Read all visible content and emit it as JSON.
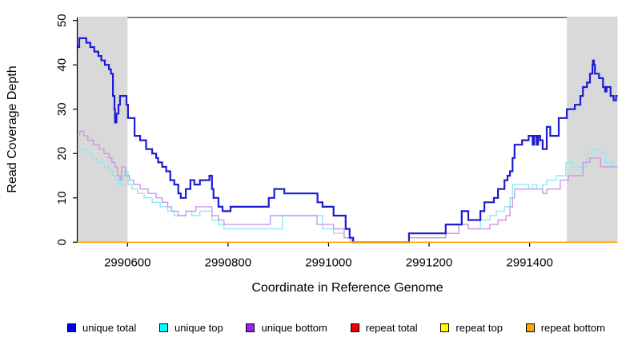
{
  "chart_data": {
    "type": "line",
    "subtype": "step",
    "title": "",
    "xlabel": "Coordinate in Reference Genome",
    "ylabel": "Read Coverage Depth",
    "xlim": [
      2990500,
      2991575
    ],
    "ylim": [
      0,
      50
    ],
    "x_ticks": [
      2990600,
      2990800,
      2991000,
      2991200,
      2991400
    ],
    "y_ticks": [
      0,
      10,
      20,
      30,
      40,
      50
    ],
    "grid": false,
    "legend_position": "bottom",
    "plot_background": "#ffffff",
    "highlight_color": "#d9d9d9",
    "highlight_regions": [
      {
        "x0": 2990500,
        "x1": 2990600
      },
      {
        "x0": 2991474,
        "x1": 2991575
      }
    ],
    "draw_order": [
      3,
      4,
      1,
      2,
      0,
      5
    ],
    "series": [
      {
        "name": "unique total",
        "swatch_color": "#0000EE",
        "line_color": "#1c1cd2",
        "line_width": 2.2,
        "points": [
          [
            2990500,
            44
          ],
          [
            2990504,
            46
          ],
          [
            2990518,
            45
          ],
          [
            2990526,
            44
          ],
          [
            2990534,
            43
          ],
          [
            2990542,
            42
          ],
          [
            2990548,
            41
          ],
          [
            2990555,
            40
          ],
          [
            2990563,
            39
          ],
          [
            2990567,
            38
          ],
          [
            2990571,
            33
          ],
          [
            2990574,
            30
          ],
          [
            2990575,
            27
          ],
          [
            2990578,
            29
          ],
          [
            2990582,
            31
          ],
          [
            2990585,
            33
          ],
          [
            2990598,
            31
          ],
          [
            2990601,
            28
          ],
          [
            2990614,
            24
          ],
          [
            2990625,
            23
          ],
          [
            2990637,
            21
          ],
          [
            2990649,
            20
          ],
          [
            2990657,
            19
          ],
          [
            2990661,
            18
          ],
          [
            2990669,
            17
          ],
          [
            2990677,
            16
          ],
          [
            2990685,
            14
          ],
          [
            2990693,
            13
          ],
          [
            2990701,
            11
          ],
          [
            2990706,
            10
          ],
          [
            2990716,
            12
          ],
          [
            2990725,
            14
          ],
          [
            2990733,
            13
          ],
          [
            2990744,
            14
          ],
          [
            2990763,
            15
          ],
          [
            2990768,
            12
          ],
          [
            2990771,
            10
          ],
          [
            2990781,
            8
          ],
          [
            2990789,
            7
          ],
          [
            2990805,
            8
          ],
          [
            2990881,
            10
          ],
          [
            2990892,
            12
          ],
          [
            2990912,
            11
          ],
          [
            2990978,
            9
          ],
          [
            2990988,
            8
          ],
          [
            2991010,
            6
          ],
          [
            2991034,
            3
          ],
          [
            2991042,
            1
          ],
          [
            2991049,
            0
          ],
          [
            2991160,
            2
          ],
          [
            2991233,
            4
          ],
          [
            2991265,
            7
          ],
          [
            2991278,
            5
          ],
          [
            2991302,
            7
          ],
          [
            2991310,
            9
          ],
          [
            2991329,
            10
          ],
          [
            2991337,
            12
          ],
          [
            2991350,
            14
          ],
          [
            2991356,
            15
          ],
          [
            2991361,
            16
          ],
          [
            2991366,
            19
          ],
          [
            2991370,
            22
          ],
          [
            2991385,
            23
          ],
          [
            2991398,
            24
          ],
          [
            2991406,
            22
          ],
          [
            2991409,
            24
          ],
          [
            2991414,
            22
          ],
          [
            2991417,
            24
          ],
          [
            2991421,
            23
          ],
          [
            2991426,
            21
          ],
          [
            2991434,
            26
          ],
          [
            2991441,
            24
          ],
          [
            2991458,
            28
          ],
          [
            2991474,
            30
          ],
          [
            2991490,
            31
          ],
          [
            2991501,
            33
          ],
          [
            2991506,
            35
          ],
          [
            2991514,
            36
          ],
          [
            2991520,
            38
          ],
          [
            2991525,
            40
          ],
          [
            2991526,
            41
          ],
          [
            2991528,
            40
          ],
          [
            2991530,
            38
          ],
          [
            2991538,
            37
          ],
          [
            2991546,
            35
          ],
          [
            2991550,
            34
          ],
          [
            2991553,
            35
          ],
          [
            2991561,
            33
          ],
          [
            2991567,
            32
          ],
          [
            2991572,
            33
          ]
        ]
      },
      {
        "name": "unique top",
        "swatch_color": "#00FFFF",
        "line_color": "#8ceaee",
        "line_width": 1.4,
        "points": [
          [
            2990500,
            21
          ],
          [
            2990518,
            20
          ],
          [
            2990529,
            19
          ],
          [
            2990540,
            18
          ],
          [
            2990553,
            17
          ],
          [
            2990563,
            16
          ],
          [
            2990571,
            15
          ],
          [
            2990577,
            14
          ],
          [
            2990582,
            13
          ],
          [
            2990590,
            15
          ],
          [
            2990594,
            16
          ],
          [
            2990601,
            13
          ],
          [
            2990609,
            12
          ],
          [
            2990620,
            11
          ],
          [
            2990633,
            10
          ],
          [
            2990649,
            9
          ],
          [
            2990665,
            8
          ],
          [
            2990680,
            7
          ],
          [
            2990693,
            6
          ],
          [
            2990716,
            7
          ],
          [
            2990728,
            6
          ],
          [
            2990744,
            7
          ],
          [
            2990768,
            5
          ],
          [
            2990781,
            4
          ],
          [
            2990792,
            3
          ],
          [
            2990908,
            6
          ],
          [
            2990988,
            3
          ],
          [
            2991010,
            2
          ],
          [
            2991031,
            1
          ],
          [
            2991047,
            0
          ],
          [
            2991160,
            1
          ],
          [
            2991233,
            2
          ],
          [
            2991259,
            4
          ],
          [
            2991278,
            3
          ],
          [
            2991302,
            5
          ],
          [
            2991321,
            6
          ],
          [
            2991334,
            7
          ],
          [
            2991350,
            8
          ],
          [
            2991361,
            10
          ],
          [
            2991366,
            13
          ],
          [
            2991398,
            12
          ],
          [
            2991406,
            13
          ],
          [
            2991414,
            12
          ],
          [
            2991426,
            13
          ],
          [
            2991434,
            14
          ],
          [
            2991453,
            15
          ],
          [
            2991472,
            18
          ],
          [
            2991485,
            17
          ],
          [
            2991514,
            20
          ],
          [
            2991525,
            21
          ],
          [
            2991541,
            20
          ],
          [
            2991552,
            18
          ],
          [
            2991564,
            17
          ]
        ]
      },
      {
        "name": "unique bottom",
        "swatch_color": "#A020F0",
        "line_color": "#cb97ea",
        "line_width": 1.4,
        "points": [
          [
            2990500,
            24
          ],
          [
            2990505,
            25
          ],
          [
            2990513,
            24
          ],
          [
            2990521,
            23
          ],
          [
            2990532,
            22
          ],
          [
            2990544,
            21
          ],
          [
            2990553,
            20
          ],
          [
            2990563,
            19
          ],
          [
            2990569,
            18
          ],
          [
            2990575,
            17
          ],
          [
            2990580,
            15
          ],
          [
            2990585,
            14
          ],
          [
            2990588,
            17
          ],
          [
            2990596,
            15
          ],
          [
            2990604,
            14
          ],
          [
            2990612,
            13
          ],
          [
            2990625,
            12
          ],
          [
            2990641,
            11
          ],
          [
            2990657,
            10
          ],
          [
            2990669,
            9
          ],
          [
            2990680,
            8
          ],
          [
            2990688,
            7
          ],
          [
            2990701,
            6
          ],
          [
            2990716,
            7
          ],
          [
            2990736,
            8
          ],
          [
            2990768,
            6
          ],
          [
            2990781,
            5
          ],
          [
            2990792,
            4
          ],
          [
            2990884,
            6
          ],
          [
            2990977,
            4
          ],
          [
            2991010,
            3
          ],
          [
            2991031,
            1
          ],
          [
            2991044,
            0
          ],
          [
            2991160,
            1
          ],
          [
            2991233,
            2
          ],
          [
            2991259,
            4
          ],
          [
            2991278,
            3
          ],
          [
            2991302,
            3
          ],
          [
            2991321,
            4
          ],
          [
            2991337,
            5
          ],
          [
            2991353,
            6
          ],
          [
            2991361,
            8
          ],
          [
            2991366,
            10
          ],
          [
            2991370,
            12
          ],
          [
            2991426,
            11
          ],
          [
            2991434,
            12
          ],
          [
            2991461,
            14
          ],
          [
            2991477,
            15
          ],
          [
            2991506,
            18
          ],
          [
            2991520,
            19
          ],
          [
            2991541,
            17
          ],
          [
            2991564,
            17
          ]
        ]
      },
      {
        "name": "repeat total",
        "swatch_color": "#EE0000",
        "line_color": "#EE0000",
        "line_width": 1.4,
        "points": [
          [
            2990500,
            0
          ],
          [
            2991575,
            0
          ]
        ]
      },
      {
        "name": "repeat top",
        "swatch_color": "#FFFF00",
        "line_color": "#FFFF00",
        "line_width": 1.4,
        "points": [
          [
            2990500,
            0
          ],
          [
            2991575,
            0
          ]
        ]
      },
      {
        "name": "repeat bottom",
        "swatch_color": "#FFA500",
        "line_color": "#FFA500",
        "line_width": 1.6,
        "points": [
          [
            2990500,
            0
          ],
          [
            2991575,
            0
          ]
        ]
      }
    ]
  }
}
